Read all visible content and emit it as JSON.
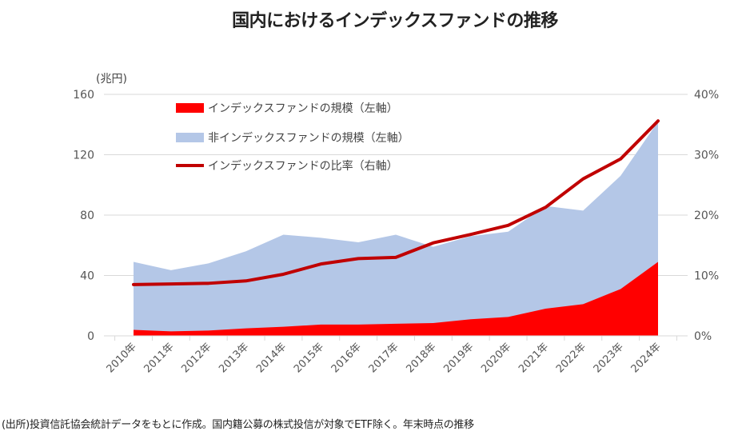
{
  "title": "国内におけるインデックスファンドの推移",
  "source_note": "(出所)投資信託協会統計データをもとに作成。国内籍公募の株式投信が対象でETF除く。年末時点の推移",
  "chart_data": {
    "type": "area",
    "title": "国内におけるインデックスファンドの推移",
    "ylabel": "(兆円)",
    "ylim": [
      0,
      160
    ],
    "y_ticks": [
      "0",
      "40",
      "80",
      "120",
      "160"
    ],
    "y2lim": [
      0,
      40
    ],
    "y2_ticks": [
      "0%",
      "10%",
      "20%",
      "30%",
      "40%"
    ],
    "grid": true,
    "legend_position": "top-left",
    "categories": [
      "2010年",
      "2011年",
      "2012年",
      "2013年",
      "2014年",
      "2015年",
      "2016年",
      "2017年",
      "2018年",
      "2019年",
      "2020年",
      "2021年",
      "2022年",
      "2023年",
      "2024年"
    ],
    "series": [
      {
        "name": "インデックスファンドの規模（左軸）",
        "type": "area",
        "axis": "left",
        "color": "#ff0000",
        "values": [
          4,
          3,
          3.5,
          5,
          6,
          7.5,
          7.5,
          8,
          8.5,
          11,
          12.5,
          18,
          21,
          31,
          49
        ]
      },
      {
        "name": "非インデックスファンドの規模（左軸）",
        "type": "area-stacked",
        "axis": "left",
        "color": "#b4c7e7",
        "values": [
          45,
          40.5,
          44.5,
          51,
          61,
          57.5,
          54.5,
          59,
          50.5,
          55,
          56.5,
          68,
          62,
          75,
          93
        ]
      },
      {
        "name": "インデックスファンドの比率（右軸）",
        "type": "line",
        "axis": "right",
        "color": "#c00000",
        "values": [
          8.5,
          8.6,
          8.7,
          9.1,
          10.2,
          11.9,
          12.8,
          13.0,
          15.4,
          16.8,
          18.3,
          21.3,
          26.0,
          29.3,
          35.6
        ]
      }
    ]
  }
}
